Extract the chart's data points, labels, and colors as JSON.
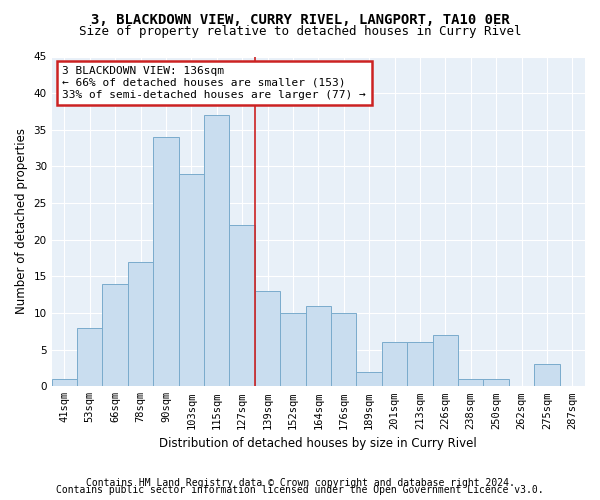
{
  "title": "3, BLACKDOWN VIEW, CURRY RIVEL, LANGPORT, TA10 0ER",
  "subtitle": "Size of property relative to detached houses in Curry Rivel",
  "xlabel": "Distribution of detached houses by size in Curry Rivel",
  "ylabel": "Number of detached properties",
  "bar_color": "#c9ddef",
  "bar_edge_color": "#7aabcc",
  "plot_bg_color": "#e8f0f8",
  "categories": [
    "41sqm",
    "53sqm",
    "66sqm",
    "78sqm",
    "90sqm",
    "103sqm",
    "115sqm",
    "127sqm",
    "139sqm",
    "152sqm",
    "164sqm",
    "176sqm",
    "189sqm",
    "201sqm",
    "213sqm",
    "226sqm",
    "238sqm",
    "250sqm",
    "262sqm",
    "275sqm",
    "287sqm"
  ],
  "values": [
    1,
    8,
    14,
    17,
    34,
    29,
    37,
    22,
    13,
    10,
    11,
    10,
    2,
    6,
    6,
    7,
    1,
    1,
    0,
    3,
    0
  ],
  "vline_x_index": 7.5,
  "vline_color": "#cc2222",
  "annotation_line1": "3 BLACKDOWN VIEW: 136sqm",
  "annotation_line2": "← 66% of detached houses are smaller (153)",
  "annotation_line3": "33% of semi-detached houses are larger (77) →",
  "ylim": [
    0,
    45
  ],
  "yticks": [
    0,
    5,
    10,
    15,
    20,
    25,
    30,
    35,
    40,
    45
  ],
  "annotation_box_color": "#ffffff",
  "annotation_border_color": "#cc2222",
  "footer1": "Contains HM Land Registry data © Crown copyright and database right 2024.",
  "footer2": "Contains public sector information licensed under the Open Government Licence v3.0.",
  "title_fontsize": 10,
  "subtitle_fontsize": 9,
  "axis_label_fontsize": 8.5,
  "tick_fontsize": 7.5,
  "annotation_fontsize": 8,
  "footer_fontsize": 7
}
